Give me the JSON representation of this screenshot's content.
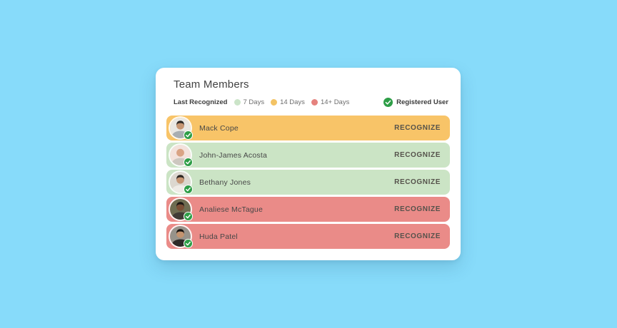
{
  "background_color": "#87DBFA",
  "card": {
    "title": "Team Members",
    "legend": {
      "label": "Last Recognized",
      "items": [
        {
          "name": "7-days",
          "label": "7 Days",
          "color": "#CBE4C8"
        },
        {
          "name": "14-days",
          "label": "14 Days",
          "color": "#F3C365"
        },
        {
          "name": "14-plus-days",
          "label": "14+ Days",
          "color": "#E5827E"
        }
      ],
      "registered": {
        "label": "Registered User",
        "icon": "check-circle-icon",
        "color": "#2E9E47"
      }
    },
    "recognize_label": "RECOGNIZE",
    "row_colors": {
      "7_days": "#CBE4C5",
      "14_days": "#F8C468",
      "14_plus_days": "#EA8B88"
    },
    "badge_color": "#2E9E47",
    "members": [
      {
        "name": "Mack Cope",
        "status": "14_days",
        "registered": true,
        "avatar": {
          "bg": "#E9E7E3",
          "skin": "#C69674",
          "hair": "#2E2A28",
          "shirt": "#A9AEB2"
        }
      },
      {
        "name": "John-James Acosta",
        "status": "7_days",
        "registered": true,
        "avatar": {
          "bg": "#F3E2DC",
          "skin": "#D9A384",
          "hair": "#00000000",
          "shirt": "#CDC7C0"
        }
      },
      {
        "name": "Bethany Jones",
        "status": "7_days",
        "registered": true,
        "avatar": {
          "bg": "#DCD7CF",
          "skin": "#C79674",
          "hair": "#2B2521",
          "shirt": "#EFEBE6"
        }
      },
      {
        "name": "Analiese McTague",
        "status": "14_plus_days",
        "registered": true,
        "avatar": {
          "bg": "#6E6C51",
          "skin": "#7A4E35",
          "hair": "#1C1715",
          "shirt": "#413C36"
        }
      },
      {
        "name": "Huda Patel",
        "status": "14_plus_days",
        "registered": true,
        "avatar": {
          "bg": "#97938B",
          "skin": "#C3936F",
          "hair": "#171210",
          "shirt": "#2E2A28"
        }
      }
    ]
  }
}
